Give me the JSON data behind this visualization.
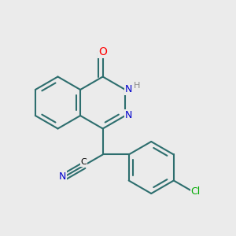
{
  "bg_color": "#ebebeb",
  "bond_color": "#2d6e6e",
  "bond_width": 1.5,
  "atom_colors": {
    "O": "#ff0000",
    "N": "#0000cc",
    "Cl": "#00aa00",
    "H": "#888888",
    "C": "#000000"
  },
  "font_size": 9,
  "bl": 0.11
}
